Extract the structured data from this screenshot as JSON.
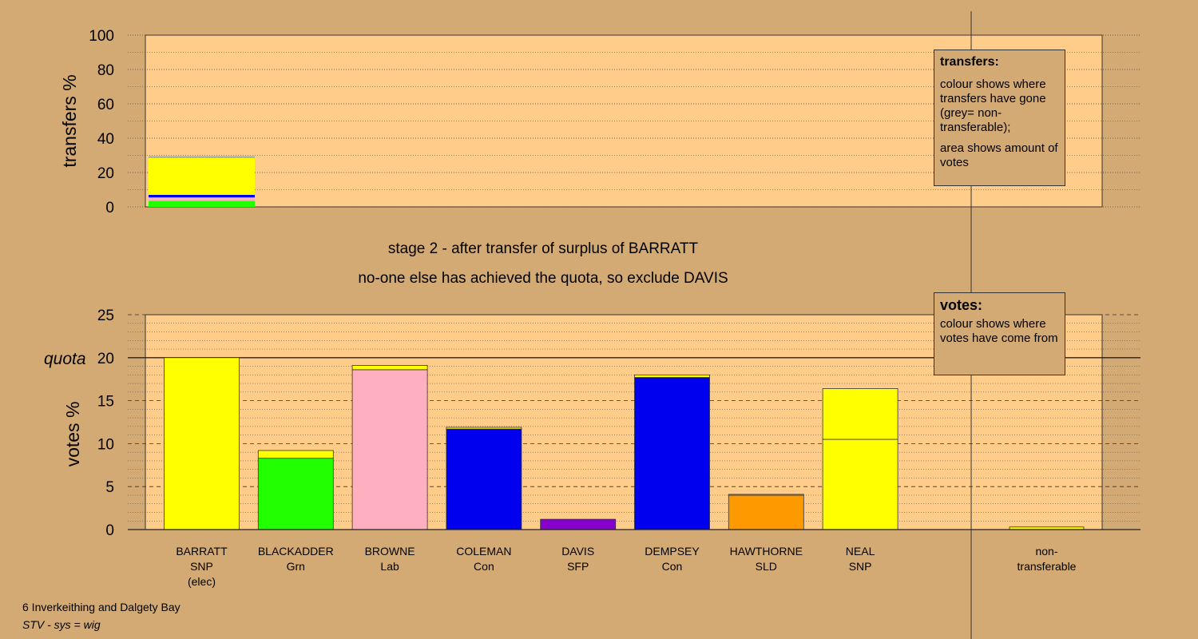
{
  "stage_caption": "stage 2 - after transfer of surplus of BARRATT",
  "action_caption": "no-one else has achieved the quota, so exclude DAVIS",
  "footer": {
    "ward": "6 Inverkeithing and Dalgety Bay",
    "system": "STV - sys = wig"
  },
  "transfers_legend": {
    "title": "transfers:",
    "line1": "colour shows where transfers have gone (grey= non-transferable);",
    "line2": "area shows amount of votes"
  },
  "votes_legend": {
    "title": "votes:",
    "line1": "colour shows where votes have come from"
  },
  "colors": {
    "panel": "#ffcc8a",
    "background": "#d4aa74",
    "SNP": "#ffff00",
    "Grn": "#22ff00",
    "Lab": "#ffb0c0",
    "Con": "#0000ee",
    "SFP": "#8800cc",
    "SLD": "#ff9900",
    "nontransferable": "#a8a8a8"
  },
  "chart_data": [
    {
      "type": "bar",
      "name": "transfers",
      "ylabel": "transfers %",
      "ylim": [
        0,
        100
      ],
      "yticks": [
        0,
        20,
        40,
        60,
        80,
        100
      ],
      "bars": [
        {
          "position": 0,
          "segments": [
            {
              "party": "Grn",
              "value": 3.5
            },
            {
              "party": "Lab",
              "value": 2.0
            },
            {
              "party": "Con",
              "value": 1.5
            },
            {
              "party": "SNP",
              "value": 21.5
            },
            {
              "party": "nontransferable",
              "value": 1.0
            }
          ]
        }
      ]
    },
    {
      "type": "bar",
      "name": "votes",
      "ylabel": "votes %",
      "quota_label": "quota",
      "quota": 20,
      "ylim": [
        0,
        25
      ],
      "yticks": [
        0,
        5,
        10,
        15,
        20,
        25
      ],
      "candidates": [
        {
          "name": "BARRATT",
          "party": "SNP",
          "note": "(elec)",
          "segments": [
            {
              "party": "SNP",
              "value": 20.0
            }
          ]
        },
        {
          "name": "BLACKADDER",
          "party": "Grn",
          "note": "",
          "segments": [
            {
              "party": "Grn",
              "value": 8.3
            },
            {
              "party": "SNP",
              "value": 0.9
            }
          ]
        },
        {
          "name": "BROWNE",
          "party": "Lab",
          "note": "",
          "segments": [
            {
              "party": "Lab",
              "value": 18.6
            },
            {
              "party": "SNP",
              "value": 0.5
            }
          ]
        },
        {
          "name": "COLEMAN",
          "party": "Con",
          "note": "",
          "segments": [
            {
              "party": "Con",
              "value": 11.7
            },
            {
              "party": "SNP",
              "value": 0.2
            }
          ]
        },
        {
          "name": "DAVIS",
          "party": "SFP",
          "note": "",
          "segments": [
            {
              "party": "SFP",
              "value": 1.2
            }
          ]
        },
        {
          "name": "DEMPSEY",
          "party": "Con",
          "note": "",
          "segments": [
            {
              "party": "Con",
              "value": 17.7
            },
            {
              "party": "SNP",
              "value": 0.3
            }
          ]
        },
        {
          "name": "HAWTHORNE",
          "party": "SLD",
          "note": "",
          "segments": [
            {
              "party": "SLD",
              "value": 4.0
            },
            {
              "party": "SNP",
              "value": 0.1
            }
          ]
        },
        {
          "name": "NEAL",
          "party": "SNP",
          "note": "",
          "segments": [
            {
              "party": "SNP",
              "value": 10.5
            },
            {
              "party": "SNP",
              "value": 5.9
            }
          ]
        }
      ],
      "nontransferable": {
        "name": "non-",
        "name2": "transferable",
        "segments": [
          {
            "party": "SNP",
            "value": 0.3
          }
        ]
      }
    }
  ]
}
